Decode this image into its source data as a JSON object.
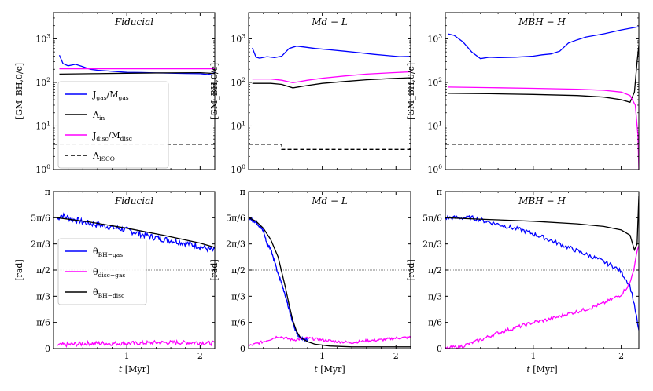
{
  "chart_data": [
    {
      "type": "line",
      "title": "Fiducial",
      "xlabel": "",
      "ylabel": "[GM_BH,0/c]",
      "yscale": "log",
      "xlim": [
        0.0,
        2.2
      ],
      "ylim": [
        1,
        4000
      ],
      "xticks": [
        {
          "v": 1,
          "label": ""
        },
        {
          "v": 2,
          "label": ""
        }
      ],
      "yticks": [
        {
          "v": 1,
          "label": "10",
          "exp": "0"
        },
        {
          "v": 10,
          "label": "10",
          "exp": "1"
        },
        {
          "v": 100,
          "label": "10",
          "exp": "2"
        },
        {
          "v": 1000,
          "label": "10",
          "exp": "3"
        }
      ],
      "series": [
        {
          "name": "J_gas/M_gas",
          "color": "#0000ff",
          "dash": "",
          "x": [
            0.08,
            0.13,
            0.2,
            0.3,
            0.4,
            0.5,
            0.6,
            0.7,
            0.8,
            0.9,
            1.0,
            1.2,
            1.4,
            1.6,
            1.8,
            2.0,
            2.1,
            2.2
          ],
          "y": [
            420,
            270,
            240,
            260,
            230,
            200,
            190,
            185,
            180,
            175,
            170,
            168,
            165,
            163,
            160,
            158,
            152,
            165
          ]
        },
        {
          "name": "Λ_in",
          "color": "#000000",
          "dash": "",
          "x": [
            0.08,
            0.5,
            1.0,
            1.5,
            2.0,
            2.2
          ],
          "y": [
            155,
            158,
            162,
            165,
            167,
            160
          ]
        },
        {
          "name": "J_disc/M_disc",
          "color": "#ff00ff",
          "dash": "",
          "x": [
            0.08,
            2.2
          ],
          "y": [
            205,
            205
          ]
        },
        {
          "name": "Λ_ISCO",
          "color": "#000000",
          "dash": "5,3",
          "x": [
            0.0,
            2.2
          ],
          "y": [
            3.8,
            3.8
          ]
        }
      ],
      "legend": {
        "position": "lower-left",
        "entries": [
          {
            "text": "J",
            "sub": "gas",
            "text2": "/M",
            "sub2": "gas",
            "color": "#0000ff",
            "dash": ""
          },
          {
            "text": "Λ",
            "sub": "in",
            "text2": "",
            "sub2": "",
            "color": "#000000",
            "dash": ""
          },
          {
            "text": "J",
            "sub": "disc",
            "text2": "/M",
            "sub2": "disc",
            "color": "#ff00ff",
            "dash": ""
          },
          {
            "text": "Λ",
            "sub": "ISCO",
            "text2": "",
            "sub2": "",
            "color": "#000000",
            "dash": "5,3"
          }
        ]
      }
    },
    {
      "type": "line",
      "title": "Md − L",
      "xlabel": "",
      "ylabel": "[GM_BH,0/c]",
      "yscale": "log",
      "xlim": [
        0.0,
        2.2
      ],
      "ylim": [
        1,
        4000
      ],
      "xticks": [
        {
          "v": 1,
          "label": ""
        },
        {
          "v": 2,
          "label": ""
        }
      ],
      "yticks": [
        {
          "v": 1,
          "label": "10",
          "exp": "0"
        },
        {
          "v": 10,
          "label": "10",
          "exp": "1"
        },
        {
          "v": 100,
          "label": "10",
          "exp": "2"
        },
        {
          "v": 1000,
          "label": "10",
          "exp": "3"
        }
      ],
      "series": [
        {
          "name": "J_gas/M_gas",
          "color": "#0000ff",
          "dash": "",
          "x": [
            0.05,
            0.1,
            0.15,
            0.25,
            0.35,
            0.45,
            0.55,
            0.65,
            0.75,
            0.9,
            1.1,
            1.3,
            1.5,
            1.7,
            1.9,
            2.05,
            2.2
          ],
          "y": [
            620,
            380,
            360,
            390,
            370,
            400,
            600,
            680,
            650,
            600,
            560,
            520,
            480,
            440,
            410,
            390,
            395
          ]
        },
        {
          "name": "Λ_in",
          "color": "#000000",
          "dash": "",
          "x": [
            0.05,
            0.3,
            0.45,
            0.6,
            0.8,
            1.0,
            1.3,
            1.6,
            1.9,
            2.2
          ],
          "y": [
            95,
            95,
            90,
            75,
            85,
            95,
            105,
            115,
            122,
            128
          ]
        },
        {
          "name": "J_disc/M_disc",
          "color": "#ff00ff",
          "dash": "",
          "x": [
            0.05,
            0.3,
            0.45,
            0.6,
            0.8,
            1.0,
            1.3,
            1.6,
            1.9,
            2.2
          ],
          "y": [
            120,
            120,
            112,
            98,
            112,
            125,
            140,
            155,
            165,
            175
          ]
        },
        {
          "name": "Λ_ISCO",
          "color": "#000000",
          "dash": "5,3",
          "x": [
            0.0,
            0.45,
            0.45,
            2.2
          ],
          "y": [
            3.8,
            3.8,
            2.9,
            2.9
          ]
        }
      ]
    },
    {
      "type": "line",
      "title": "MBH − H",
      "xlabel": "",
      "ylabel": "[GM_BH,0/c]",
      "yscale": "log",
      "xlim": [
        0.0,
        2.2
      ],
      "ylim": [
        1,
        4000
      ],
      "xticks": [
        {
          "v": 1,
          "label": ""
        },
        {
          "v": 2,
          "label": ""
        }
      ],
      "yticks": [
        {
          "v": 1,
          "label": "10",
          "exp": "0"
        },
        {
          "v": 10,
          "label": "10",
          "exp": "1"
        },
        {
          "v": 100,
          "label": "10",
          "exp": "2"
        },
        {
          "v": 1000,
          "label": "10",
          "exp": "3"
        }
      ],
      "series": [
        {
          "name": "J_gas/M_gas",
          "color": "#0000ff",
          "dash": "",
          "x": [
            0.03,
            0.1,
            0.2,
            0.3,
            0.4,
            0.5,
            0.6,
            0.8,
            1.0,
            1.1,
            1.2,
            1.3,
            1.4,
            1.5,
            1.6,
            1.8,
            2.0,
            2.2
          ],
          "y": [
            1300,
            1200,
            850,
            500,
            350,
            380,
            370,
            380,
            400,
            430,
            450,
            520,
            800,
            950,
            1100,
            1300,
            1600,
            1900
          ]
        },
        {
          "name": "Λ_in",
          "color": "#000000",
          "dash": "",
          "x": [
            0.03,
            0.5,
            1.0,
            1.5,
            1.8,
            2.0,
            2.1,
            2.15,
            2.18,
            2.2
          ],
          "y": [
            56,
            55,
            53,
            50,
            46,
            40,
            35,
            60,
            300,
            700
          ]
        },
        {
          "name": "J_disc/M_disc",
          "color": "#ff00ff",
          "dash": "",
          "x": [
            0.03,
            0.5,
            1.0,
            1.5,
            1.8,
            2.0,
            2.1,
            2.16,
            2.19,
            2.2
          ],
          "y": [
            78,
            76,
            73,
            70,
            66,
            60,
            50,
            30,
            6,
            1
          ]
        },
        {
          "name": "Λ_ISCO",
          "color": "#000000",
          "dash": "5,3",
          "x": [
            0.0,
            2.2
          ],
          "y": [
            3.8,
            3.8
          ]
        }
      ]
    },
    {
      "type": "line",
      "title": "Fiducial",
      "xlabel": "t [Myr]",
      "ylabel": "[rad]",
      "yscale": "linear",
      "xlim": [
        0.0,
        2.2
      ],
      "ylim": [
        0,
        180
      ],
      "xticks": [
        {
          "v": 1,
          "label": "1"
        },
        {
          "v": 2,
          "label": "2"
        }
      ],
      "yticks": [
        {
          "v": 0,
          "label": "0"
        },
        {
          "v": 30,
          "label": "π/6"
        },
        {
          "v": 60,
          "label": "π/3"
        },
        {
          "v": 90,
          "label": "π/2"
        },
        {
          "v": 120,
          "label": "2π/3"
        },
        {
          "v": 150,
          "label": "5π/6"
        },
        {
          "v": 180,
          "label": "π"
        }
      ],
      "hline": 90,
      "series": [
        {
          "name": "θ_BH−gas",
          "color": "#0000ff",
          "dash": "",
          "noisy": 3.5,
          "x": [
            0.05,
            0.1,
            0.2,
            0.4,
            0.6,
            0.8,
            1.0,
            1.2,
            1.4,
            1.6,
            1.8,
            2.0,
            2.2
          ],
          "y": [
            148,
            153,
            150,
            145,
            142,
            139,
            136,
            131,
            127,
            124,
            121,
            117,
            112
          ]
        },
        {
          "name": "θ_disc−gas",
          "color": "#ff00ff",
          "dash": "",
          "noisy": 2.5,
          "x": [
            0.05,
            0.5,
            1.0,
            1.5,
            2.0,
            2.2
          ],
          "y": [
            4,
            6,
            6,
            7,
            7,
            6
          ]
        },
        {
          "name": "θ_BH−disc",
          "color": "#000000",
          "dash": "",
          "x": [
            0.05,
            0.5,
            1.0,
            1.5,
            2.0,
            2.2
          ],
          "y": [
            150,
            145,
            138,
            130,
            121,
            116
          ]
        }
      ],
      "legend": {
        "position": "center-left",
        "entries": [
          {
            "text": "θ",
            "sub": "BH−gas",
            "text2": "",
            "sub2": "",
            "color": "#0000ff",
            "dash": ""
          },
          {
            "text": "θ",
            "sub": "disc−gas",
            "text2": "",
            "sub2": "",
            "color": "#ff00ff",
            "dash": ""
          },
          {
            "text": "θ",
            "sub": "BH−disc",
            "text2": "",
            "sub2": "",
            "color": "#000000",
            "dash": ""
          }
        ]
      }
    },
    {
      "type": "line",
      "title": "Md − L",
      "xlabel": "t [Myr]",
      "ylabel": "[rad]",
      "yscale": "linear",
      "xlim": [
        0.0,
        2.2
      ],
      "ylim": [
        0,
        180
      ],
      "xticks": [
        {
          "v": 1,
          "label": "1"
        },
        {
          "v": 2,
          "label": "2"
        }
      ],
      "yticks": [
        {
          "v": 0,
          "label": "0"
        },
        {
          "v": 30,
          "label": "π/6"
        },
        {
          "v": 60,
          "label": "π/3"
        },
        {
          "v": 90,
          "label": "π/2"
        },
        {
          "v": 120,
          "label": "2π/3"
        },
        {
          "v": 150,
          "label": "5π/6"
        },
        {
          "v": 180,
          "label": "π"
        }
      ],
      "hline": 90,
      "series": [
        {
          "name": "θ_BH−gas",
          "color": "#0000ff",
          "dash": "",
          "noisy": 1.5,
          "x": [
            0.0,
            0.1,
            0.2,
            0.25,
            0.3,
            0.35,
            0.4,
            0.45,
            0.5,
            0.55,
            0.6,
            0.65,
            0.7,
            0.8
          ],
          "y": [
            150,
            145,
            135,
            120,
            115,
            100,
            85,
            75,
            60,
            45,
            30,
            18,
            12,
            10
          ]
        },
        {
          "name": "θ_disc−gas",
          "color": "#ff00ff",
          "dash": "",
          "noisy": 1.5,
          "x": [
            0.0,
            0.2,
            0.4,
            0.6,
            0.8,
            1.0,
            1.2,
            1.4,
            1.6,
            1.8,
            2.0,
            2.2
          ],
          "y": [
            3,
            8,
            14,
            10,
            12,
            10,
            8,
            7,
            9,
            10,
            12,
            13
          ]
        },
        {
          "name": "θ_BH−disc",
          "color": "#000000",
          "dash": "",
          "x": [
            0.0,
            0.1,
            0.2,
            0.3,
            0.4,
            0.5,
            0.55,
            0.6,
            0.65,
            0.7,
            0.8,
            0.9,
            1.1,
            1.4,
            2.2
          ],
          "y": [
            150,
            146,
            138,
            125,
            105,
            70,
            50,
            32,
            20,
            13,
            8,
            5,
            3,
            2,
            2
          ]
        }
      ]
    },
    {
      "type": "line",
      "title": "MBH − H",
      "xlabel": "t [Myr]",
      "ylabel": "[rad]",
      "yscale": "linear",
      "xlim": [
        0.0,
        2.2
      ],
      "ylim": [
        0,
        180
      ],
      "xticks": [
        {
          "v": 1,
          "label": "1"
        },
        {
          "v": 2,
          "label": "2"
        }
      ],
      "yticks": [
        {
          "v": 0,
          "label": "0"
        },
        {
          "v": 30,
          "label": "π/6"
        },
        {
          "v": 60,
          "label": "π/3"
        },
        {
          "v": 90,
          "label": "π/2"
        },
        {
          "v": 120,
          "label": "2π/3"
        },
        {
          "v": 150,
          "label": "5π/6"
        },
        {
          "v": 180,
          "label": "π"
        }
      ],
      "hline": 90,
      "series": [
        {
          "name": "θ_BH−gas",
          "color": "#0000ff",
          "dash": "",
          "noisy": 2.5,
          "x": [
            0.0,
            0.3,
            0.5,
            0.7,
            0.9,
            1.1,
            1.3,
            1.5,
            1.7,
            1.9,
            2.0,
            2.1,
            2.15,
            2.2
          ],
          "y": [
            150,
            150,
            145,
            140,
            135,
            128,
            120,
            112,
            104,
            95,
            88,
            72,
            50,
            20
          ]
        },
        {
          "name": "θ_disc−gas",
          "color": "#ff00ff",
          "dash": "",
          "noisy": 2,
          "x": [
            0.0,
            0.2,
            0.4,
            0.6,
            0.8,
            1.0,
            1.2,
            1.4,
            1.6,
            1.8,
            2.0,
            2.1,
            2.15,
            2.2
          ],
          "y": [
            0,
            3,
            10,
            18,
            24,
            30,
            34,
            40,
            45,
            52,
            62,
            75,
            95,
            120
          ]
        },
        {
          "name": "θ_BH−disc",
          "color": "#000000",
          "dash": "",
          "x": [
            0.0,
            0.5,
            1.0,
            1.5,
            1.8,
            2.0,
            2.1,
            2.15,
            2.18,
            2.2
          ],
          "y": [
            150,
            148,
            146,
            143,
            140,
            136,
            130,
            113,
            120,
            175
          ]
        }
      ]
    }
  ]
}
